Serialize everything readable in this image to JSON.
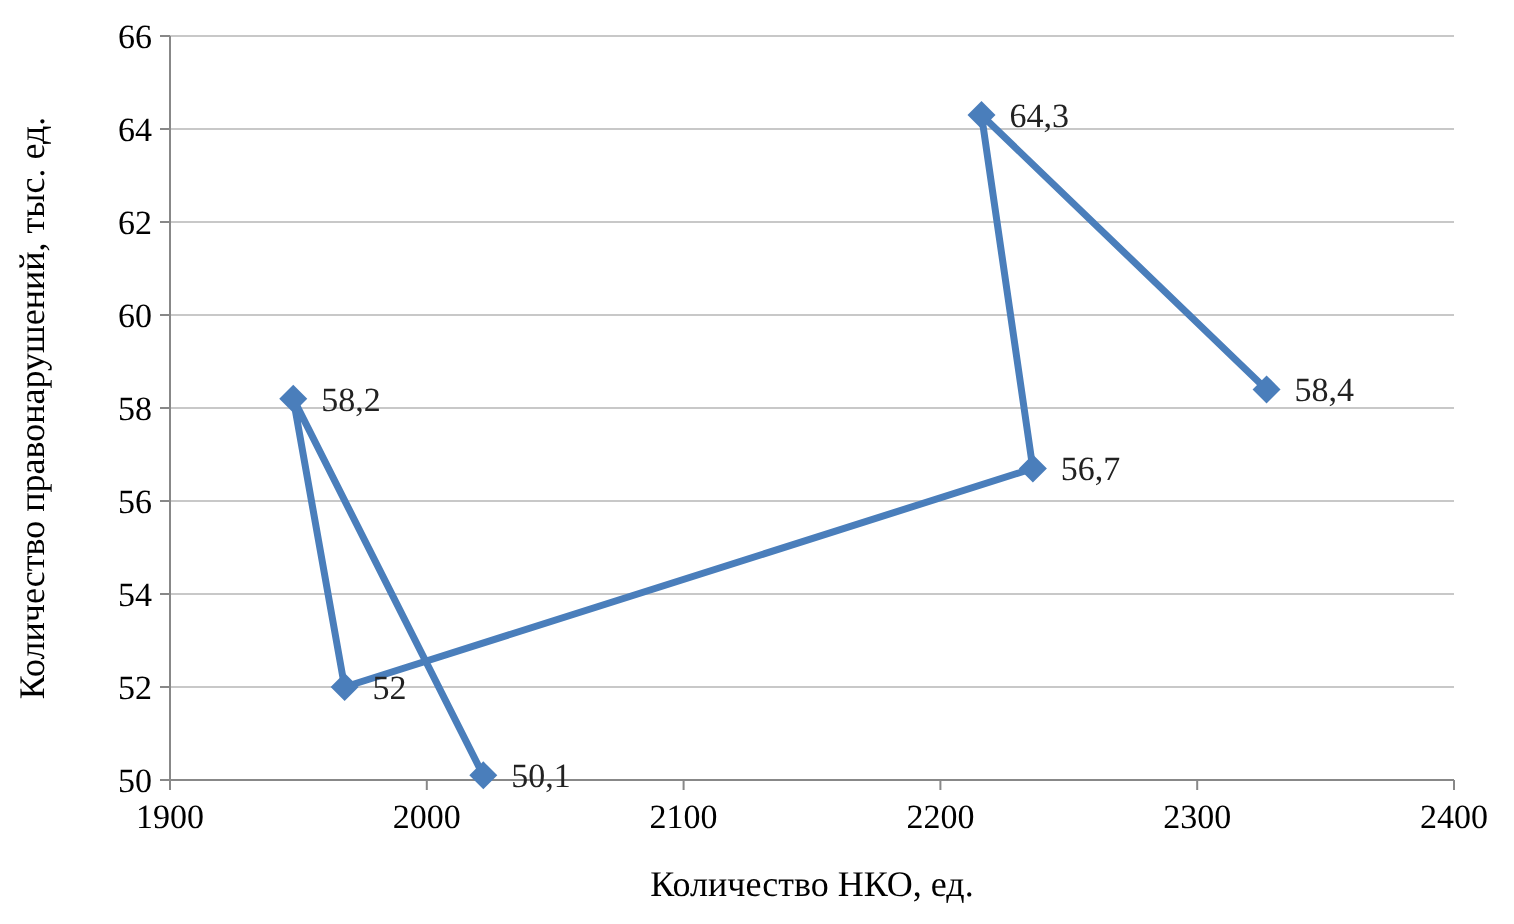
{
  "chart_data": {
    "type": "line",
    "xlabel": "Количество НКО, ед.",
    "ylabel": "Количество правонарушений, тыс. ед.",
    "x": [
      2022,
      1948,
      1968,
      2236,
      2216,
      2327
    ],
    "series": [
      {
        "color": "#4a7ebb",
        "values": [
          50.1,
          58.2,
          52,
          56.7,
          64.3,
          58.4
        ],
        "value_labels": [
          "50,1",
          "58,2",
          "52",
          "56,7",
          "64,3",
          "58,4"
        ]
      }
    ],
    "xlim": [
      1900,
      2400
    ],
    "xticks": [
      1900,
      2000,
      2100,
      2200,
      2300,
      2400
    ],
    "ylim": [
      50,
      66
    ],
    "yticks": [
      50,
      52,
      54,
      56,
      58,
      60,
      62,
      64,
      66
    ],
    "grid": "y",
    "marker": "diamond",
    "line_style": "solid"
  }
}
